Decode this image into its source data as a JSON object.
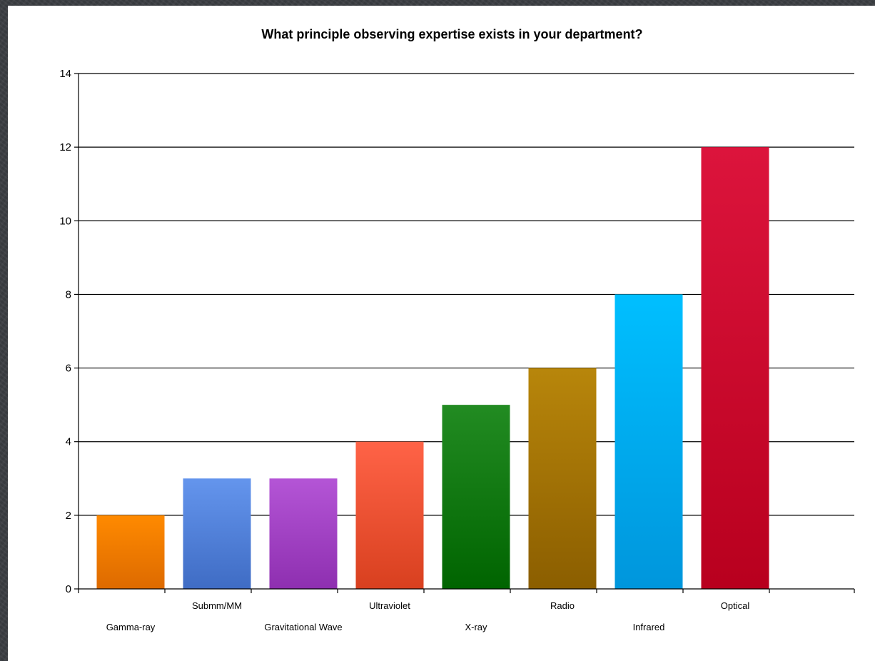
{
  "chart_data": {
    "type": "bar",
    "title": "What principle observing expertise exists in your department?",
    "xlabel": "",
    "ylabel": "",
    "ylim": [
      0,
      14
    ],
    "y_ticks": [
      0,
      2,
      4,
      6,
      8,
      10,
      12,
      14
    ],
    "grid": true,
    "legend": "none",
    "categories": [
      "Gamma-ray",
      "Submm/MM",
      "Gravitational Wave",
      "Ultraviolet",
      "X-ray",
      "Radio",
      "Infrared",
      "Optical"
    ],
    "values": [
      2,
      3,
      3,
      4,
      5,
      6,
      8,
      12
    ],
    "colors": [
      [
        "#ff8a00",
        "#dd6a00"
      ],
      [
        "#6495ed",
        "#3f6cc4"
      ],
      [
        "#b455d6",
        "#8e2fb0"
      ],
      [
        "#ff6347",
        "#d8401f"
      ],
      [
        "#228b22",
        "#006400"
      ],
      [
        "#b8860b",
        "#8b5e00"
      ],
      [
        "#00bfff",
        "#0096dc"
      ],
      [
        "#dc143c",
        "#b8001e"
      ]
    ]
  }
}
